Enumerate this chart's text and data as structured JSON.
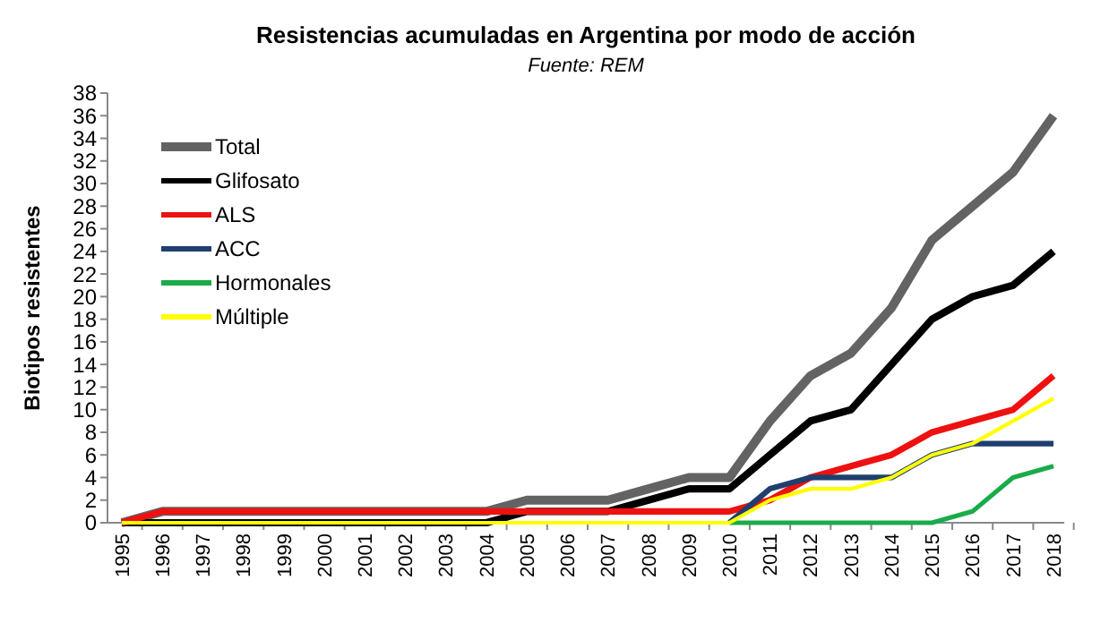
{
  "chart_data": {
    "type": "line",
    "title": "Resistencias acumuladas en Argentina por modo de acción",
    "subtitle": "Fuente: REM",
    "ylabel": "Biotipos resistentes",
    "categories": [
      "1995",
      "1996",
      "1997",
      "1998",
      "1999",
      "2000",
      "2001",
      "2002",
      "2003",
      "2004",
      "2005",
      "2006",
      "2007",
      "2008",
      "2009",
      "2010",
      "2011",
      "2012",
      "2013",
      "2014",
      "2015",
      "2016",
      "2017",
      "2018"
    ],
    "series": [
      {
        "name": "Total",
        "color": "#636363",
        "values": [
          0,
          1,
          1,
          1,
          1,
          1,
          1,
          1,
          1,
          1,
          2,
          2,
          2,
          3,
          4,
          4,
          9,
          13,
          15,
          19,
          25,
          28,
          31,
          36
        ]
      },
      {
        "name": "Glifosato",
        "color": "#000000",
        "values": [
          0,
          0,
          0,
          0,
          0,
          0,
          0,
          0,
          0,
          0,
          1,
          1,
          1,
          2,
          3,
          3,
          6,
          9,
          10,
          14,
          18,
          20,
          21,
          24
        ]
      },
      {
        "name": "ALS",
        "color": "#ee1111",
        "values": [
          0,
          1,
          1,
          1,
          1,
          1,
          1,
          1,
          1,
          1,
          1,
          1,
          1,
          1,
          1,
          1,
          2,
          4,
          5,
          6,
          8,
          9,
          10,
          13
        ]
      },
      {
        "name": "ACC",
        "color": "#1f3f6e",
        "values": [
          null,
          null,
          null,
          null,
          null,
          null,
          null,
          null,
          null,
          null,
          null,
          null,
          null,
          null,
          null,
          0,
          3,
          4,
          4,
          4,
          6,
          7,
          7,
          7
        ]
      },
      {
        "name": "Hormonales",
        "color": "#1aab4a",
        "values": [
          null,
          null,
          null,
          null,
          null,
          null,
          null,
          null,
          null,
          null,
          null,
          null,
          null,
          null,
          null,
          0,
          0,
          0,
          0,
          0,
          0,
          1,
          4,
          5
        ]
      },
      {
        "name": "Múltiple",
        "color": "#ffff00",
        "values": [
          0,
          0,
          0,
          0,
          0,
          0,
          0,
          0,
          0,
          0,
          0,
          0,
          0,
          0,
          0,
          0,
          2,
          3,
          3,
          4,
          6,
          7,
          9,
          11
        ]
      }
    ],
    "ylim": [
      0,
      38
    ],
    "yticks": [
      0,
      2,
      4,
      6,
      8,
      10,
      12,
      14,
      16,
      18,
      20,
      22,
      24,
      26,
      28,
      30,
      32,
      34,
      36,
      38
    ],
    "grid": false,
    "legend": "top left",
    "marker": "none",
    "line_style": "solid"
  }
}
